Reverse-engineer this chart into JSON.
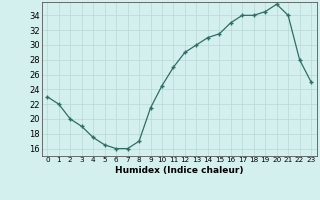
{
  "x": [
    0,
    1,
    2,
    3,
    4,
    5,
    6,
    7,
    8,
    9,
    10,
    11,
    12,
    13,
    14,
    15,
    16,
    17,
    18,
    19,
    20,
    21,
    22,
    23
  ],
  "y": [
    23,
    22,
    20,
    19,
    17.5,
    16.5,
    16,
    16,
    17,
    21.5,
    24.5,
    27,
    29,
    30,
    31,
    31.5,
    33,
    34,
    34,
    34.5,
    35.5,
    34,
    28,
    25
  ],
  "xlabel": "Humidex (Indice chaleur)",
  "xlim": [
    -0.5,
    23.5
  ],
  "ylim": [
    15,
    35.8
  ],
  "yticks": [
    16,
    18,
    20,
    22,
    24,
    26,
    28,
    30,
    32,
    34
  ],
  "xticks": [
    0,
    1,
    2,
    3,
    4,
    5,
    6,
    7,
    8,
    9,
    10,
    11,
    12,
    13,
    14,
    15,
    16,
    17,
    18,
    19,
    20,
    21,
    22,
    23
  ],
  "line_color": "#2d6e63",
  "marker_color": "#2d6e63",
  "bg_color": "#d4f0ee",
  "grid_color": "#b8d8d5",
  "font_color": "#000000"
}
